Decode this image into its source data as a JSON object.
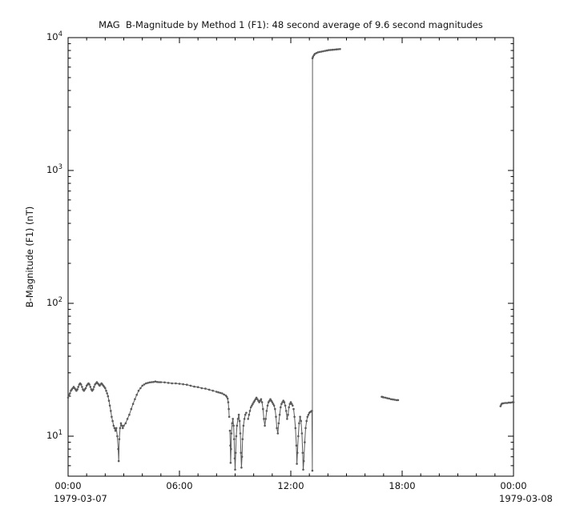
{
  "chart_data": {
    "type": "line",
    "title": "MAG  B-Magnitude by Method 1 (F1): 48 second average of 9.6 second magnitudes",
    "ylabel": "B-Magnitude (F1) (nT)",
    "yscale": "log",
    "grid": false,
    "legend": "none",
    "xlim": [
      0,
      24
    ],
    "ylim": [
      5,
      10000
    ],
    "x_unit": "hours since 1979-03-07 00:00",
    "line_color": "#5a5a5a",
    "frame_color": "#000000",
    "xticks": [
      {
        "t": 0,
        "label": "00:00"
      },
      {
        "t": 6,
        "label": "06:00"
      },
      {
        "t": 12,
        "label": "12:00"
      },
      {
        "t": 18,
        "label": "18:00"
      },
      {
        "t": 24,
        "label": "00:00"
      }
    ],
    "xlabel_dates": [
      "1979-03-07",
      "1979-03-08"
    ],
    "yticks": [
      {
        "value": 10,
        "base": "10",
        "exp": "1"
      },
      {
        "value": 100,
        "base": "10",
        "exp": "2"
      },
      {
        "value": 1000,
        "base": "10",
        "exp": "3"
      },
      {
        "value": 10000,
        "base": "10",
        "exp": "4"
      }
    ],
    "segments": [
      [
        [
          0.0,
          19.5
        ],
        [
          0.05,
          20.5
        ],
        [
          0.1,
          21.0
        ],
        [
          0.15,
          22.0
        ],
        [
          0.2,
          22.5
        ],
        [
          0.25,
          23.0
        ],
        [
          0.3,
          23.5
        ],
        [
          0.35,
          23.0
        ],
        [
          0.4,
          22.5
        ],
        [
          0.45,
          22.0
        ],
        [
          0.5,
          22.5
        ],
        [
          0.55,
          23.5
        ],
        [
          0.6,
          24.5
        ],
        [
          0.65,
          25.0
        ],
        [
          0.7,
          24.5
        ],
        [
          0.75,
          23.5
        ],
        [
          0.8,
          22.5
        ],
        [
          0.85,
          22.0
        ],
        [
          0.9,
          22.5
        ],
        [
          0.95,
          23.0
        ],
        [
          1.0,
          24.0
        ],
        [
          1.05,
          24.5
        ],
        [
          1.1,
          25.0
        ],
        [
          1.15,
          24.5
        ],
        [
          1.2,
          23.5
        ],
        [
          1.25,
          22.5
        ],
        [
          1.3,
          22.0
        ],
        [
          1.35,
          22.5
        ],
        [
          1.4,
          23.5
        ],
        [
          1.45,
          24.5
        ],
        [
          1.5,
          25.0
        ],
        [
          1.55,
          25.5
        ],
        [
          1.6,
          25.0
        ],
        [
          1.65,
          24.5
        ],
        [
          1.7,
          24.0
        ],
        [
          1.75,
          24.5
        ],
        [
          1.8,
          25.0
        ],
        [
          1.85,
          24.5
        ],
        [
          1.9,
          24.0
        ],
        [
          1.95,
          23.5
        ],
        [
          2.0,
          23.0
        ],
        [
          2.05,
          22.0
        ],
        [
          2.1,
          21.0
        ],
        [
          2.15,
          20.0
        ],
        [
          2.2,
          18.5
        ],
        [
          2.25,
          17.0
        ],
        [
          2.3,
          15.5
        ],
        [
          2.35,
          14.0
        ],
        [
          2.4,
          13.0
        ],
        [
          2.45,
          12.0
        ],
        [
          2.5,
          11.5
        ],
        [
          2.55,
          11.0
        ],
        [
          2.6,
          11.5
        ],
        [
          2.65,
          10.0
        ],
        [
          2.7,
          8.0
        ],
        [
          2.73,
          6.5
        ],
        [
          2.76,
          9.5
        ],
        [
          2.8,
          11.5
        ],
        [
          2.85,
          12.5
        ],
        [
          2.9,
          12.0
        ],
        [
          2.95,
          11.5
        ],
        [
          3.0,
          12.0
        ],
        [
          3.1,
          12.5
        ],
        [
          3.2,
          13.5
        ],
        [
          3.3,
          14.5
        ],
        [
          3.4,
          16.0
        ],
        [
          3.5,
          17.5
        ],
        [
          3.6,
          19.0
        ],
        [
          3.7,
          20.5
        ],
        [
          3.8,
          22.0
        ],
        [
          3.9,
          23.0
        ],
        [
          4.0,
          24.0
        ],
        [
          4.1,
          24.5
        ],
        [
          4.2,
          25.0
        ],
        [
          4.3,
          25.2
        ],
        [
          4.4,
          25.4
        ],
        [
          4.5,
          25.5
        ],
        [
          4.6,
          25.6
        ],
        [
          4.7,
          25.8
        ],
        [
          4.8,
          25.6
        ],
        [
          4.9,
          25.5
        ],
        [
          5.0,
          25.5
        ],
        [
          5.2,
          25.4
        ],
        [
          5.4,
          25.2
        ],
        [
          5.6,
          25.0
        ],
        [
          5.8,
          25.0
        ],
        [
          6.0,
          24.8
        ],
        [
          6.2,
          24.6
        ],
        [
          6.4,
          24.4
        ],
        [
          6.6,
          24.0
        ],
        [
          6.8,
          23.6
        ],
        [
          7.0,
          23.4
        ],
        [
          7.2,
          23.0
        ],
        [
          7.4,
          22.8
        ],
        [
          7.6,
          22.4
        ],
        [
          7.8,
          22.0
        ],
        [
          8.0,
          21.6
        ],
        [
          8.1,
          21.4
        ],
        [
          8.2,
          21.2
        ],
        [
          8.3,
          21.0
        ],
        [
          8.4,
          20.6
        ],
        [
          8.5,
          20.2
        ],
        [
          8.55,
          19.8
        ],
        [
          8.6,
          19.2
        ],
        [
          8.63,
          18.0
        ],
        [
          8.66,
          16.0
        ],
        [
          8.68,
          14.0
        ]
      ],
      [
        [
          8.72,
          11.0
        ],
        [
          8.74,
          8.5
        ],
        [
          8.76,
          6.3
        ],
        [
          8.78,
          8.0
        ],
        [
          8.8,
          10.5
        ],
        [
          8.84,
          12.5
        ],
        [
          8.88,
          13.5
        ],
        [
          8.92,
          12.0
        ],
        [
          8.95,
          9.5
        ],
        [
          8.98,
          6.8
        ],
        [
          9.0,
          5.6
        ],
        [
          9.03,
          7.5
        ],
        [
          9.06,
          10.0
        ],
        [
          9.1,
          12.0
        ],
        [
          9.15,
          13.5
        ],
        [
          9.2,
          14.5
        ],
        [
          9.24,
          13.0
        ],
        [
          9.28,
          10.5
        ],
        [
          9.31,
          7.5
        ],
        [
          9.34,
          5.8
        ],
        [
          9.37,
          7.0
        ],
        [
          9.4,
          9.5
        ],
        [
          9.45,
          12.0
        ],
        [
          9.5,
          13.5
        ],
        [
          9.55,
          14.5
        ],
        [
          9.6,
          15.0
        ]
      ],
      [
        [
          9.7,
          13.5
        ],
        [
          9.75,
          14.5
        ],
        [
          9.8,
          15.5
        ],
        [
          9.85,
          16.5
        ],
        [
          9.9,
          17.0
        ],
        [
          9.95,
          17.5
        ],
        [
          10.0,
          18.0
        ],
        [
          10.05,
          18.5
        ],
        [
          10.1,
          19.0
        ],
        [
          10.15,
          19.5
        ],
        [
          10.2,
          19.0
        ],
        [
          10.25,
          18.5
        ],
        [
          10.3,
          18.0
        ],
        [
          10.35,
          18.5
        ],
        [
          10.4,
          19.0
        ],
        [
          10.45,
          18.0
        ],
        [
          10.5,
          16.0
        ],
        [
          10.55,
          13.5
        ],
        [
          10.6,
          12.0
        ],
        [
          10.65,
          13.5
        ],
        [
          10.7,
          15.5
        ],
        [
          10.75,
          17.0
        ],
        [
          10.8,
          18.0
        ],
        [
          10.85,
          18.5
        ],
        [
          10.9,
          19.0
        ],
        [
          10.95,
          18.5
        ],
        [
          11.0,
          18.0
        ],
        [
          11.05,
          17.5
        ],
        [
          11.1,
          17.0
        ],
        [
          11.15,
          16.0
        ],
        [
          11.2,
          14.0
        ],
        [
          11.25,
          11.5
        ],
        [
          11.3,
          10.5
        ],
        [
          11.35,
          12.5
        ],
        [
          11.4,
          14.5
        ],
        [
          11.45,
          16.5
        ],
        [
          11.5,
          17.5
        ],
        [
          11.55,
          18.0
        ],
        [
          11.6,
          18.5
        ],
        [
          11.65,
          18.0
        ],
        [
          11.7,
          17.0
        ],
        [
          11.75,
          15.5
        ],
        [
          11.8,
          13.5
        ],
        [
          11.85,
          14.5
        ],
        [
          11.9,
          16.5
        ],
        [
          11.95,
          17.5
        ],
        [
          12.0,
          18.0
        ],
        [
          12.05,
          17.5
        ],
        [
          12.1,
          17.0
        ]
      ],
      [
        [
          12.15,
          16.0
        ],
        [
          12.2,
          14.0
        ],
        [
          12.25,
          11.5
        ],
        [
          12.3,
          8.5
        ],
        [
          12.33,
          6.2
        ],
        [
          12.36,
          7.5
        ],
        [
          12.4,
          10.0
        ],
        [
          12.45,
          12.5
        ],
        [
          12.5,
          14.0
        ],
        [
          12.55,
          13.0
        ],
        [
          12.6,
          10.5
        ],
        [
          12.64,
          7.5
        ],
        [
          12.67,
          5.6
        ],
        [
          12.7,
          6.5
        ],
        [
          12.75,
          9.0
        ],
        [
          12.8,
          11.5
        ],
        [
          12.85,
          13.0
        ],
        [
          12.9,
          14.0
        ],
        [
          12.95,
          14.5
        ],
        [
          13.0,
          15.0
        ],
        [
          13.05,
          15.2
        ],
        [
          13.1,
          15.4
        ],
        [
          13.14,
          15.5
        ],
        [
          13.16,
          5.5
        ],
        [
          13.17,
          7000
        ],
        [
          13.2,
          7200
        ],
        [
          13.25,
          7400
        ],
        [
          13.3,
          7550
        ],
        [
          13.38,
          7650
        ],
        [
          13.46,
          7750
        ],
        [
          13.55,
          7800
        ],
        [
          13.65,
          7850
        ],
        [
          13.75,
          7900
        ],
        [
          13.85,
          7950
        ],
        [
          13.95,
          8000
        ],
        [
          14.05,
          8050
        ],
        [
          14.15,
          8080
        ],
        [
          14.25,
          8100
        ],
        [
          14.35,
          8120
        ],
        [
          14.45,
          8150
        ],
        [
          14.55,
          8180
        ],
        [
          14.65,
          8200
        ]
      ],
      [
        [
          16.9,
          19.8
        ],
        [
          16.95,
          19.7
        ],
        [
          17.0,
          19.6
        ],
        [
          17.1,
          19.5
        ],
        [
          17.2,
          19.3
        ],
        [
          17.3,
          19.2
        ],
        [
          17.4,
          19.0
        ],
        [
          17.5,
          18.9
        ],
        [
          17.6,
          18.8
        ],
        [
          17.7,
          18.7
        ],
        [
          17.78,
          18.7
        ]
      ],
      [
        [
          23.3,
          16.8
        ],
        [
          23.34,
          17.3
        ],
        [
          23.38,
          17.6
        ],
        [
          23.45,
          17.7
        ],
        [
          23.55,
          17.8
        ],
        [
          23.65,
          17.8
        ],
        [
          23.75,
          17.9
        ],
        [
          23.85,
          17.9
        ],
        [
          23.95,
          18.0
        ],
        [
          24.0,
          18.0
        ]
      ]
    ]
  }
}
